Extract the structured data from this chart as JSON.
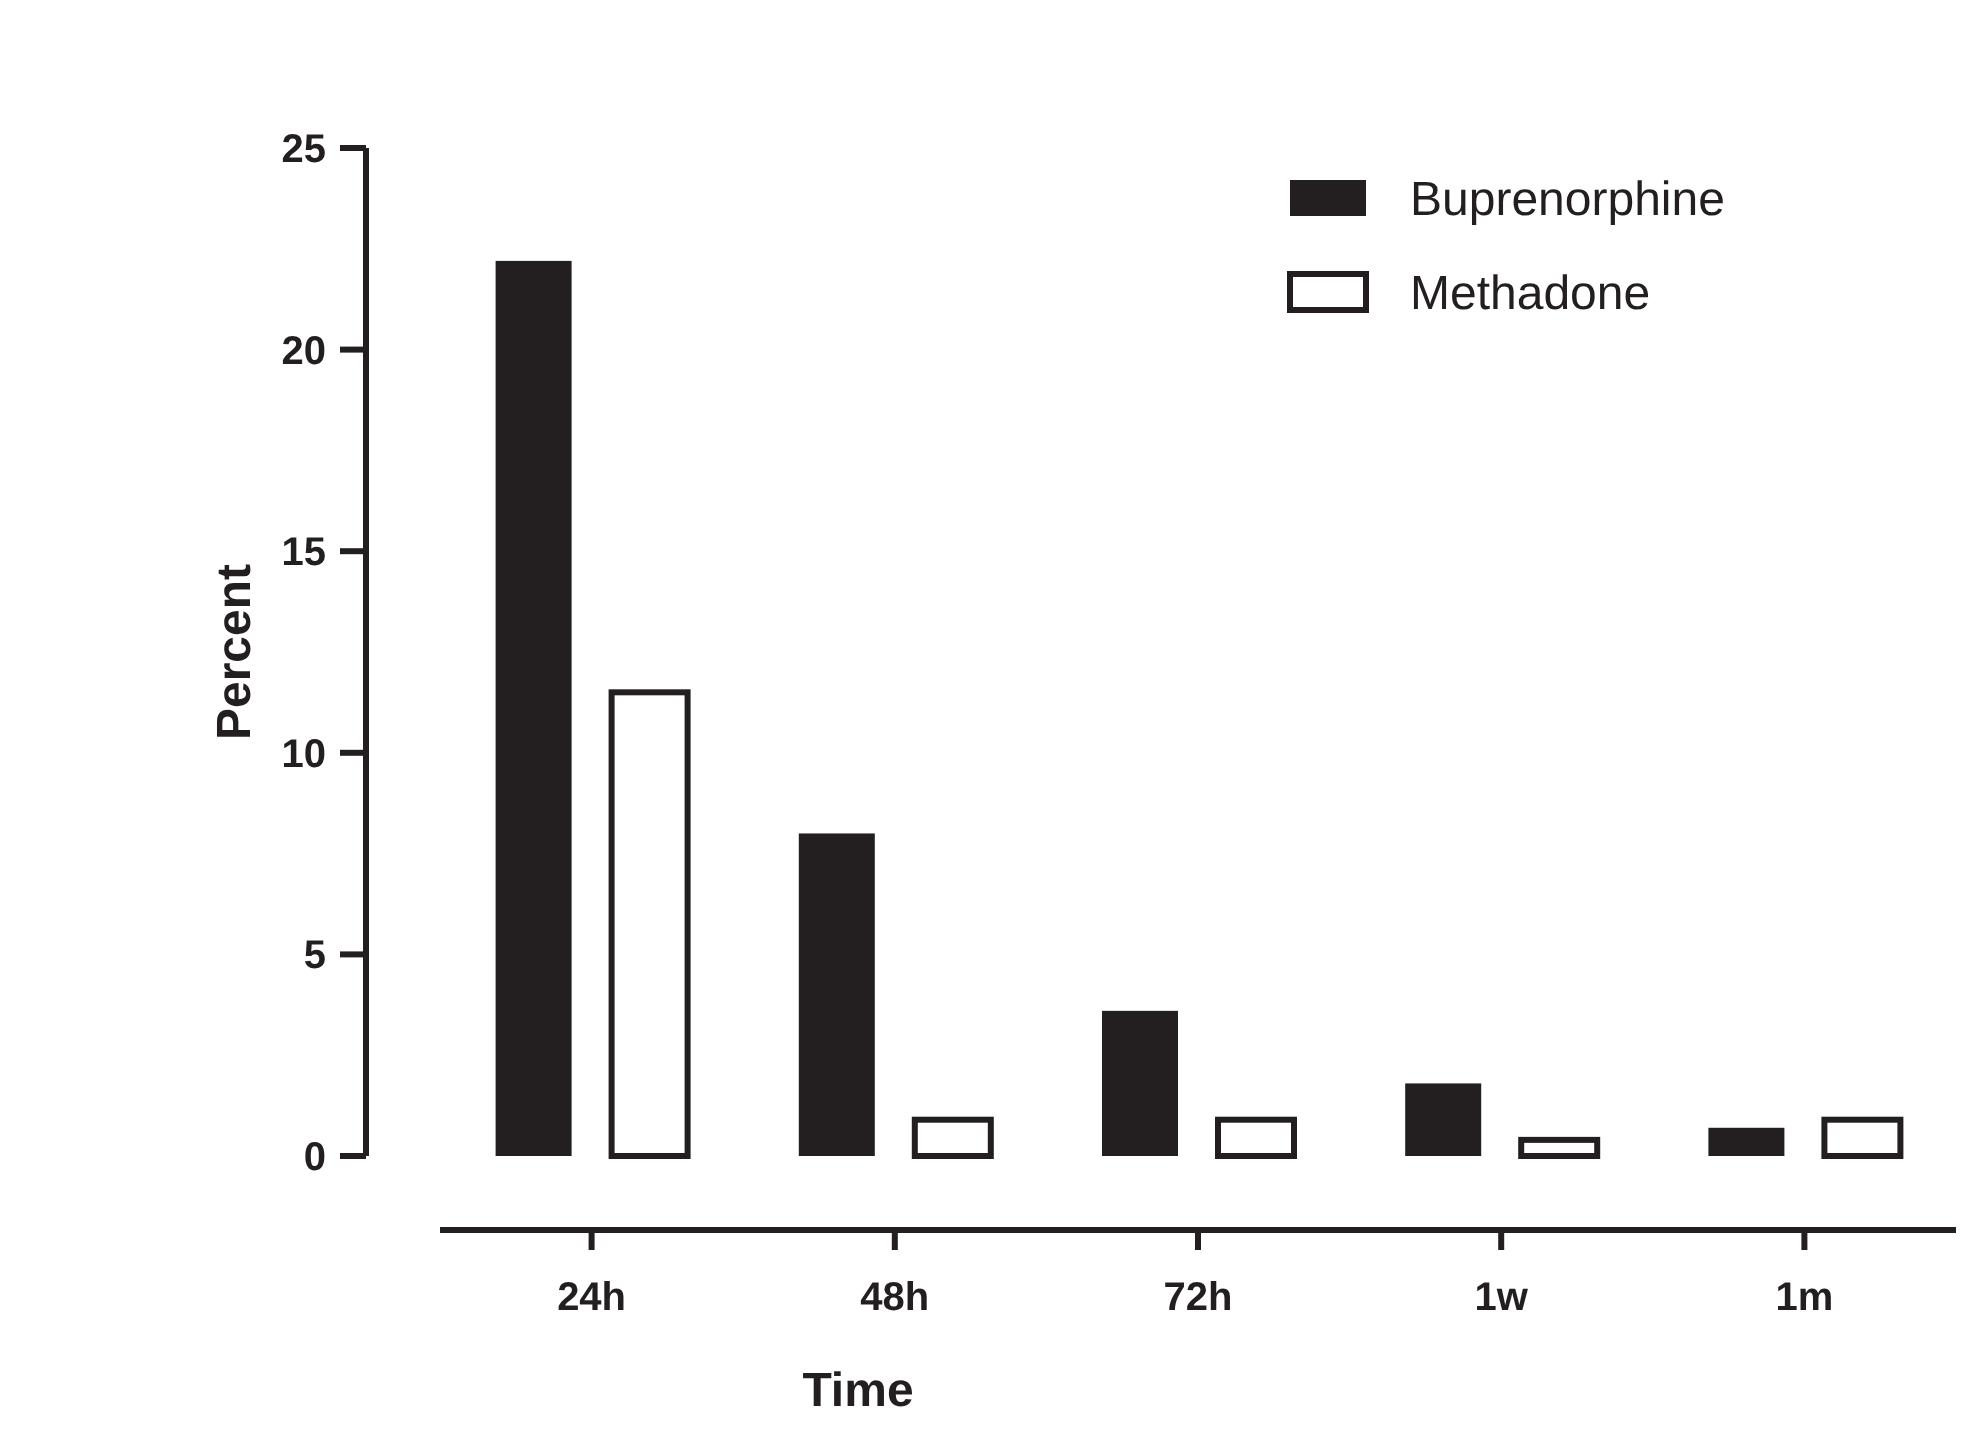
{
  "chart_data": {
    "type": "bar",
    "xlabel": "Time",
    "ylabel": "Percent",
    "categories": [
      "24h",
      "48h",
      "72h",
      "1w",
      "1m"
    ],
    "series": [
      {
        "name": "Buprenorphine",
        "color": "#231f20",
        "values": [
          22.2,
          8.0,
          3.6,
          1.8,
          0.7
        ]
      },
      {
        "name": "Methadone",
        "color": "#ffffff",
        "values": [
          11.5,
          0.9,
          0.9,
          0.4,
          0.9
        ]
      }
    ],
    "ylim": [
      0,
      25
    ],
    "yticks": [
      0,
      5,
      10,
      15,
      20,
      25
    ],
    "grid": false,
    "legend": "top right"
  }
}
